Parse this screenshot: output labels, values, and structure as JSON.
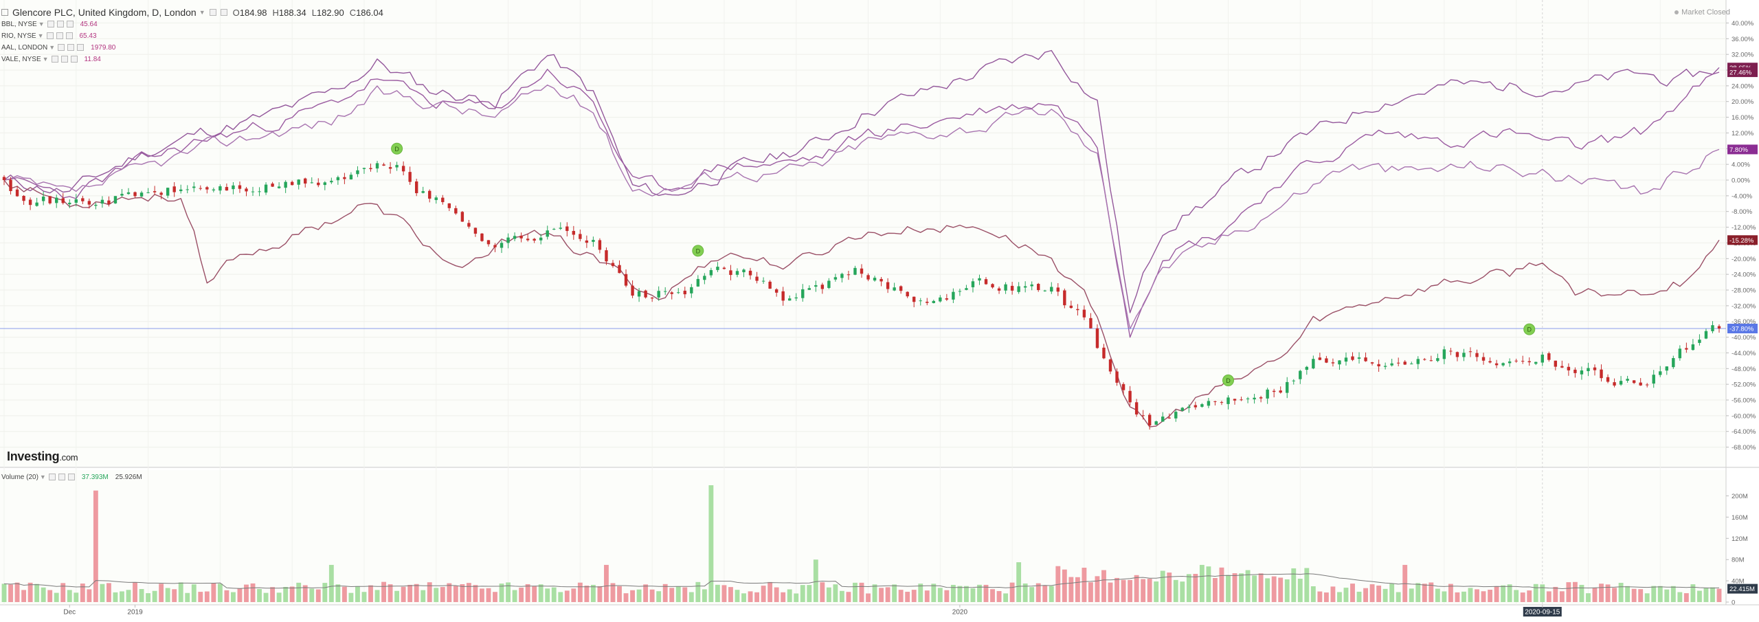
{
  "header": {
    "symbol_title": "Glencore PLC, United Kingdom, D, London",
    "open_label": "O",
    "open_value": "184.98",
    "high_label": "H",
    "high_value": "188.34",
    "low_label": "L",
    "low_value": "182.90",
    "close_label": "C",
    "close_value": "186.04"
  },
  "comparisons": [
    {
      "label": "BBL, NYSE",
      "value": "45.64"
    },
    {
      "label": "RIO, NYSE",
      "value": "65.43"
    },
    {
      "label": "AAL, LONDON",
      "value": "1979.80"
    },
    {
      "label": "VALE, NYSE",
      "value": "11.84"
    }
  ],
  "market_status": "Market Closed",
  "volume": {
    "title": "Volume (20)",
    "value_1": "37.393M",
    "value_2": "25.926M",
    "last_label": "22.415M"
  },
  "logo": {
    "name": "Investing",
    "suffix": ".com"
  },
  "colors": {
    "up": "#26a65b",
    "down": "#c62b2b",
    "comparison": "#93579b",
    "comparison_dark": "#9a4f66",
    "volume_up": "#a9dfa3",
    "volume_down": "#ee9aa0",
    "price_line": "#6e86e8",
    "event_marker": "#82cf52"
  },
  "chart_data": {
    "type": "line",
    "y_axis": {
      "unit": "percent",
      "range": [
        -70,
        42
      ],
      "ticks": [
        40,
        36,
        32,
        28,
        24,
        20,
        16,
        12,
        8,
        4,
        0,
        -4,
        -8,
        -12,
        -16,
        -20,
        -24,
        -28,
        -32,
        -36,
        -40,
        -44,
        -48,
        -52,
        -56,
        -60,
        -64,
        -68
      ],
      "tick_labels": [
        "40.00%",
        "36.00%",
        "32.00%",
        "28.00%",
        "24.00%",
        "20.00%",
        "16.00%",
        "12.00%",
        "8.00%",
        "4.00%",
        "0.00%",
        "-4.00%",
        "-8.00%",
        "-12.00%",
        "-16.00%",
        "-20.00%",
        "-24.00%",
        "-28.00%",
        "-32.00%",
        "-36.00%",
        "-40.00%",
        "-44.00%",
        "-48.00%",
        "-52.00%",
        "-56.00%",
        "-60.00%",
        "-64.00%",
        "-68.00%"
      ]
    },
    "x_axis": {
      "labels": [
        "Dec",
        "2019",
        "2020",
        "2020-09-15"
      ],
      "label_positions_index": [
        10,
        20,
        146,
        235
      ],
      "n_days": 263,
      "highlighted_label": "2020-09-15"
    },
    "volume_axis": {
      "range": [
        0,
        220
      ],
      "ticks": [
        0,
        40,
        80,
        120,
        160,
        200
      ],
      "tick_labels": [
        "0",
        "40M",
        "80M",
        "120M",
        "160M",
        "200M"
      ]
    },
    "last_value_labels": [
      {
        "value": 28.65,
        "label": "28.65%",
        "color": "#7d1f4f"
      },
      {
        "value": 27.46,
        "label": "27.46%",
        "color": "#7d1f4f"
      },
      {
        "value": 7.8,
        "label": "7.80%",
        "color": "#8b2d93"
      },
      {
        "value": -15.28,
        "label": "-15.28%",
        "color": "#8a1f2a"
      },
      {
        "value": -37.8,
        "label": "-37.80%",
        "color": "#5b78e6"
      }
    ],
    "price_line_value": -37.8,
    "series": [
      {
        "name": "BBL, NYSE",
        "kind": "line",
        "color": "#93579b",
        "keypoints": [
          [
            0,
            0
          ],
          [
            10,
            -3
          ],
          [
            20,
            6
          ],
          [
            30,
            12
          ],
          [
            40,
            16
          ],
          [
            50,
            22
          ],
          [
            57,
            30
          ],
          [
            65,
            23
          ],
          [
            75,
            20
          ],
          [
            83,
            32
          ],
          [
            90,
            22
          ],
          [
            96,
            -2
          ],
          [
            102,
            -4
          ],
          [
            110,
            2
          ],
          [
            118,
            6
          ],
          [
            125,
            10
          ],
          [
            132,
            18
          ],
          [
            140,
            22
          ],
          [
            150,
            28
          ],
          [
            160,
            33
          ],
          [
            167,
            20
          ],
          [
            172,
            -34
          ],
          [
            177,
            -12
          ],
          [
            185,
            -4
          ],
          [
            195,
            8
          ],
          [
            210,
            20
          ],
          [
            220,
            24
          ],
          [
            230,
            24
          ],
          [
            240,
            24
          ],
          [
            250,
            27
          ],
          [
            256,
            25
          ],
          [
            262,
            28.65
          ]
        ],
        "seed": 11,
        "noise": 1.6
      },
      {
        "name": "RIO, NYSE",
        "kind": "line",
        "color": "#9a5aa0",
        "keypoints": [
          [
            0,
            0
          ],
          [
            10,
            -4
          ],
          [
            20,
            4
          ],
          [
            30,
            10
          ],
          [
            40,
            14
          ],
          [
            50,
            19
          ],
          [
            57,
            26
          ],
          [
            65,
            20
          ],
          [
            75,
            18
          ],
          [
            83,
            28
          ],
          [
            90,
            20
          ],
          [
            96,
            -1
          ],
          [
            102,
            -2
          ],
          [
            110,
            4
          ],
          [
            118,
            4
          ],
          [
            125,
            6
          ],
          [
            132,
            12
          ],
          [
            140,
            14
          ],
          [
            150,
            18
          ],
          [
            160,
            20
          ],
          [
            167,
            10
          ],
          [
            172,
            -38
          ],
          [
            177,
            -18
          ],
          [
            185,
            -14
          ],
          [
            195,
            0
          ],
          [
            210,
            12
          ],
          [
            220,
            10
          ],
          [
            230,
            12
          ],
          [
            240,
            8
          ],
          [
            250,
            12
          ],
          [
            256,
            20
          ],
          [
            262,
            27.46
          ]
        ],
        "seed": 23,
        "noise": 1.5
      },
      {
        "name": "VALE, NYSE",
        "kind": "line",
        "color": "#a874b0",
        "keypoints": [
          [
            0,
            0
          ],
          [
            10,
            -4
          ],
          [
            20,
            2
          ],
          [
            30,
            8
          ],
          [
            40,
            12
          ],
          [
            50,
            15
          ],
          [
            57,
            22
          ],
          [
            65,
            20
          ],
          [
            75,
            16
          ],
          [
            83,
            24
          ],
          [
            90,
            18
          ],
          [
            96,
            -2
          ],
          [
            102,
            -2
          ],
          [
            110,
            2
          ],
          [
            118,
            2
          ],
          [
            125,
            4
          ],
          [
            132,
            10
          ],
          [
            140,
            12
          ],
          [
            150,
            14
          ],
          [
            160,
            18
          ],
          [
            167,
            6
          ],
          [
            172,
            -36
          ],
          [
            177,
            -22
          ],
          [
            185,
            -16
          ],
          [
            195,
            -6
          ],
          [
            205,
            4
          ],
          [
            215,
            2
          ],
          [
            225,
            4
          ],
          [
            235,
            2
          ],
          [
            245,
            -2
          ],
          [
            250,
            -4
          ],
          [
            256,
            2
          ],
          [
            262,
            7.8
          ]
        ],
        "seed": 37,
        "noise": 1.5
      },
      {
        "name": "AAL, LONDON",
        "kind": "line",
        "color": "#9a4f66",
        "keypoints": [
          [
            0,
            0
          ],
          [
            10,
            -6
          ],
          [
            18,
            -4
          ],
          [
            27,
            -4
          ],
          [
            29,
            -14
          ],
          [
            31,
            -28
          ],
          [
            35,
            -20
          ],
          [
            45,
            -14
          ],
          [
            55,
            -6
          ],
          [
            60,
            -10
          ],
          [
            70,
            -24
          ],
          [
            80,
            -12
          ],
          [
            90,
            -20
          ],
          [
            100,
            -30
          ],
          [
            110,
            -18
          ],
          [
            120,
            -22
          ],
          [
            130,
            -14
          ],
          [
            140,
            -12
          ],
          [
            150,
            -12
          ],
          [
            160,
            -20
          ],
          [
            167,
            -34
          ],
          [
            172,
            -58
          ],
          [
            175,
            -64
          ],
          [
            182,
            -56
          ],
          [
            190,
            -50
          ],
          [
            196,
            -44
          ],
          [
            200,
            -36
          ],
          [
            210,
            -30
          ],
          [
            220,
            -26
          ],
          [
            230,
            -24
          ],
          [
            235,
            -20
          ],
          [
            240,
            -30
          ],
          [
            250,
            -28
          ],
          [
            256,
            -26
          ],
          [
            262,
            -15.28
          ]
        ],
        "seed": 53,
        "noise": 1.3
      },
      {
        "name": "Glencore PLC",
        "kind": "candles",
        "up_color": "#26a65b",
        "down_color": "#c62b2b",
        "keypoints": [
          [
            0,
            0
          ],
          [
            5,
            -4
          ],
          [
            10,
            -6
          ],
          [
            20,
            -4
          ],
          [
            30,
            -2
          ],
          [
            40,
            -2
          ],
          [
            50,
            0
          ],
          [
            60,
            4
          ],
          [
            63,
            -2
          ],
          [
            70,
            -10
          ],
          [
            75,
            -16
          ],
          [
            85,
            -13
          ],
          [
            90,
            -14
          ],
          [
            96,
            -30
          ],
          [
            105,
            -28
          ],
          [
            110,
            -22
          ],
          [
            120,
            -30
          ],
          [
            130,
            -24
          ],
          [
            140,
            -30
          ],
          [
            150,
            -26
          ],
          [
            160,
            -28
          ],
          [
            165,
            -36
          ],
          [
            170,
            -52
          ],
          [
            175,
            -62
          ],
          [
            180,
            -60
          ],
          [
            185,
            -56
          ],
          [
            195,
            -52
          ],
          [
            200,
            -46
          ],
          [
            210,
            -46
          ],
          [
            220,
            -43
          ],
          [
            230,
            -46
          ],
          [
            235,
            -44
          ],
          [
            240,
            -48
          ],
          [
            250,
            -52
          ],
          [
            256,
            -44
          ],
          [
            262,
            -37.8
          ]
        ],
        "seed": 71,
        "noise": 1.4
      }
    ],
    "events": [
      {
        "index": 60,
        "value": 8,
        "label": "D"
      },
      {
        "index": 106,
        "value": -18,
        "label": "D"
      },
      {
        "index": 187,
        "value": -51,
        "label": "D"
      },
      {
        "index": 233,
        "value": -38,
        "label": "D"
      }
    ],
    "volume_series": {
      "base_level": 22,
      "spikes": [
        [
          14,
          210
        ],
        [
          108,
          220
        ],
        [
          50,
          70
        ],
        [
          92,
          70
        ],
        [
          124,
          80
        ],
        [
          155,
          75
        ],
        [
          183,
          70
        ],
        [
          186,
          65
        ],
        [
          214,
          70
        ]
      ],
      "moving_average_label": "Volume (20)",
      "seed": 91
    }
  }
}
